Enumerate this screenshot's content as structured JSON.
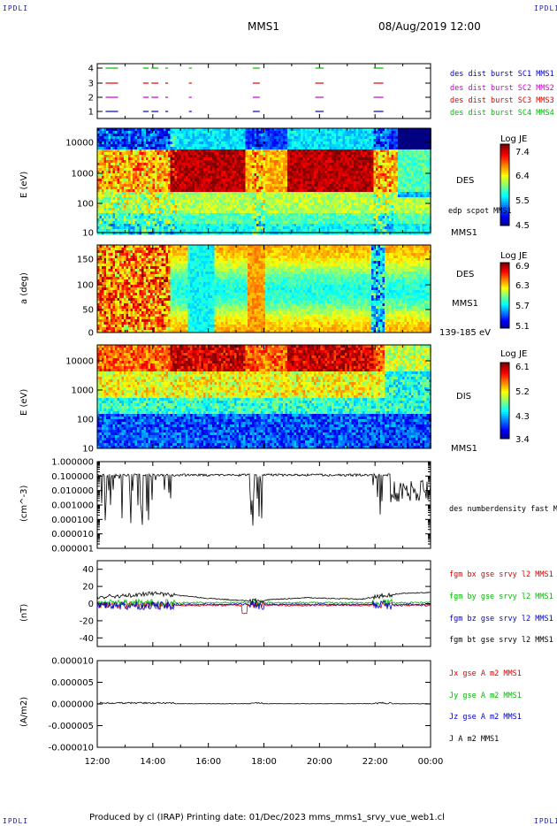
{
  "corner_label": "IPDLI",
  "header": {
    "spacecraft": "MMS1",
    "datetime": "08/Aug/2019 12:00"
  },
  "footer": {
    "text": "Produced by cl (IRAP)   Printing date: 01/Dec/2023   mms_mms1_srvy_vue_web1.cl"
  },
  "colors": {
    "red": "#dd0000",
    "green": "#00bb00",
    "blue": "#0000cc",
    "magenta": "#cc00cc",
    "black": "#000000"
  },
  "chart_data": [
    {
      "type": "timeline",
      "yticks": [
        "4",
        "3",
        "2",
        "1"
      ],
      "legend": [
        {
          "label": "des dist burst SC1 MMS1",
          "color": "#0000cc"
        },
        {
          "label": "des dist burst SC2 MMS2",
          "color": "#cc00cc"
        },
        {
          "label": "des dist burst SC3 MMS3",
          "color": "#dd0000"
        },
        {
          "label": "des dist burst SC4 MMS4",
          "color": "#00bb00"
        }
      ],
      "intervals_hours": [
        [
          12.3,
          12.75
        ],
        [
          13.65,
          13.85
        ],
        [
          13.95,
          14.2
        ],
        [
          14.45,
          14.55
        ],
        [
          15.3,
          15.4
        ],
        [
          17.6,
          17.85
        ],
        [
          19.85,
          20.15
        ],
        [
          21.95,
          22.3
        ]
      ]
    },
    {
      "type": "heatmap",
      "ylabel": "E (eV)",
      "yticks": [
        "10000",
        "1000",
        "100",
        "10"
      ],
      "right_labels": [
        "DES",
        "edp scpot MMS1",
        "MMS1"
      ],
      "colorbar": {
        "title": "Log JE",
        "ticks": [
          "7.4",
          "6.4",
          "5.5",
          "4.5"
        ]
      }
    },
    {
      "type": "heatmap",
      "ylabel": "a (deg)",
      "yticks": [
        "150",
        "100",
        "50",
        "0"
      ],
      "right_labels": [
        "DES",
        "MMS1",
        "139-185 eV"
      ],
      "colorbar": {
        "title": "Log JE",
        "ticks": [
          "6.9",
          "6.3",
          "5.7",
          "5.1"
        ]
      }
    },
    {
      "type": "heatmap",
      "ylabel": "E (eV)",
      "yticks": [
        "10000",
        "1000",
        "100",
        "10"
      ],
      "right_labels": [
        "DIS",
        "MMS1"
      ],
      "colorbar": {
        "title": "Log JE",
        "ticks": [
          "6.1",
          "5.2",
          "4.3",
          "3.4"
        ]
      }
    },
    {
      "type": "line",
      "ylabel": "(cm^-3)",
      "yticks": [
        "1.000000",
        "0.100000",
        "0.010000",
        "0.001000",
        "0.000100",
        "0.000010",
        "0.000001"
      ],
      "legend": [
        {
          "label": "des numberdensity fast M",
          "color": "#000000"
        }
      ],
      "series_typical_value": 0.12
    },
    {
      "type": "line",
      "ylabel": "(nT)",
      "yticks": [
        "40",
        "20",
        "0",
        "-20",
        "-40"
      ],
      "ylim": [
        -50,
        50
      ],
      "legend": [
        {
          "label": "fgm bx gse srvy l2 MMS1",
          "color": "#dd0000"
        },
        {
          "label": "fgm by gse srvy l2 MMS1",
          "color": "#00bb00"
        },
        {
          "label": "fgm bz gse srvy l2 MMS1",
          "color": "#0000cc"
        },
        {
          "label": "fgm bt gse srvy l2 MMS1",
          "color": "#000000"
        }
      ],
      "bt_points": [
        [
          12.0,
          8
        ],
        [
          13.0,
          9
        ],
        [
          14.0,
          12
        ],
        [
          14.8,
          10
        ],
        [
          16.0,
          6
        ],
        [
          17.5,
          3
        ],
        [
          18.5,
          5
        ],
        [
          19.5,
          7
        ],
        [
          20.5,
          6
        ],
        [
          21.5,
          5
        ],
        [
          22.0,
          8
        ],
        [
          23.0,
          12
        ],
        [
          24.0,
          13
        ]
      ]
    },
    {
      "type": "line",
      "ylabel": "(A/m2)",
      "yticks": [
        "0.000010",
        "0.000005",
        "0.000000",
        "-0.000005",
        "-0.000010"
      ],
      "ylim": [
        -1e-05,
        1e-05
      ],
      "legend": [
        {
          "label": "Jx gse A m2 MMS1",
          "color": "#dd0000"
        },
        {
          "label": "Jy gse A m2 MMS1",
          "color": "#00bb00"
        },
        {
          "label": "Jz gse A m2 MMS1",
          "color": "#0000cc"
        },
        {
          "label": "J A m2 MMS1",
          "color": "#000000"
        }
      ]
    }
  ],
  "xaxis": {
    "ticks": [
      "12:00",
      "14:00",
      "16:00",
      "18:00",
      "20:00",
      "22:00",
      "00:00"
    ]
  }
}
